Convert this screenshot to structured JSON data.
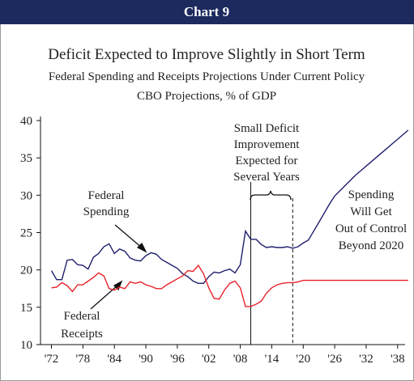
{
  "chart_data": {
    "type": "line",
    "header": "Chart 9",
    "title": "Deficit Expected to Improve Slightly in Short Term",
    "subtitle": [
      "Federal Spending and Receipts Projections Under Current Policy",
      "CBO Projections, % of GDP"
    ],
    "x": [
      1972,
      1973,
      1974,
      1975,
      1976,
      1977,
      1978,
      1979,
      1980,
      1981,
      1982,
      1983,
      1984,
      1985,
      1986,
      1987,
      1988,
      1989,
      1990,
      1991,
      1992,
      1993,
      1994,
      1995,
      1996,
      1997,
      1998,
      1999,
      2000,
      2001,
      2002,
      2003,
      2004,
      2005,
      2006,
      2007,
      2008,
      2009,
      2010,
      2011,
      2012,
      2013,
      2014,
      2015,
      2016,
      2017,
      2018,
      2019,
      2020,
      2021,
      2022,
      2023,
      2024,
      2025,
      2026,
      2027,
      2028,
      2029,
      2030,
      2031,
      2032,
      2033,
      2034,
      2035,
      2036,
      2037,
      2038,
      2039,
      2040
    ],
    "series": [
      {
        "name": "Federal Spending",
        "color": "#1f1f6e",
        "values": [
          19.9,
          18.7,
          18.7,
          21.3,
          21.4,
          20.7,
          20.6,
          20.1,
          21.7,
          22.2,
          23.1,
          23.5,
          22.2,
          22.8,
          22.5,
          21.6,
          21.3,
          21.2,
          21.9,
          22.3,
          22.1,
          21.4,
          21.0,
          20.6,
          20.2,
          19.5,
          19.1,
          18.5,
          18.2,
          18.2,
          19.1,
          19.7,
          19.6,
          19.9,
          20.1,
          19.6,
          20.7,
          25.2,
          24.1,
          24.1,
          23.4,
          23.0,
          23.1,
          23.0,
          23.0,
          23.1,
          22.9,
          23.1,
          23.6,
          24.0,
          25.2,
          26.4,
          27.6,
          28.8,
          29.9,
          30.6,
          31.3,
          32.0,
          32.7,
          33.3,
          33.9,
          34.5,
          35.1,
          35.7,
          36.3,
          36.9,
          37.5,
          38.1,
          38.7
        ]
      },
      {
        "name": "Federal Receipts",
        "color": "#e8232a",
        "values": [
          17.6,
          17.7,
          18.3,
          17.9,
          17.1,
          18.0,
          18.0,
          18.5,
          19.0,
          19.6,
          19.2,
          17.5,
          17.3,
          17.7,
          17.5,
          18.4,
          18.2,
          18.4,
          18.0,
          17.8,
          17.5,
          17.5,
          18.0,
          18.4,
          18.8,
          19.2,
          19.9,
          19.8,
          20.6,
          19.5,
          17.6,
          16.2,
          16.1,
          17.3,
          18.2,
          18.5,
          17.6,
          15.1,
          15.1,
          15.4,
          15.8,
          16.9,
          17.6,
          18.0,
          18.2,
          18.3,
          18.3,
          18.4,
          18.6,
          18.6,
          18.6,
          18.6,
          18.6,
          18.6,
          18.6,
          18.6,
          18.6,
          18.6,
          18.6,
          18.6,
          18.6,
          18.6,
          18.6,
          18.6,
          18.6,
          18.6,
          18.6,
          18.6,
          18.6
        ]
      }
    ],
    "xlim": [
      1971,
      2040.5
    ],
    "ylim": [
      10,
      40
    ],
    "yticks": [
      10,
      15,
      20,
      25,
      30,
      35,
      40
    ],
    "xticks": [
      {
        "value": 1972,
        "label": "'72"
      },
      {
        "value": 1978,
        "label": "'78"
      },
      {
        "value": 1984,
        "label": "'84"
      },
      {
        "value": 1990,
        "label": "'90"
      },
      {
        "value": 1996,
        "label": "'96"
      },
      {
        "value": 2002,
        "label": "'02"
      },
      {
        "value": 2008,
        "label": "'08"
      },
      {
        "value": 2014,
        "label": "'14"
      },
      {
        "value": 2020,
        "label": "'20"
      },
      {
        "value": 2026,
        "label": "'26"
      },
      {
        "value": 2032,
        "label": "'32"
      },
      {
        "value": 2038,
        "label": "'38"
      }
    ],
    "vlines": [
      {
        "x": 2010,
        "dashed": false
      },
      {
        "x": 2018,
        "dashed": true
      }
    ],
    "annotations": {
      "improvement": [
        "Small Deficit",
        "Improvement",
        "Expected for",
        "Several Years"
      ],
      "outlook": [
        "Spending",
        "Will Get",
        "Out of Control",
        "Beyond 2020"
      ],
      "spending": [
        "Federal",
        "Spending"
      ],
      "receipts": [
        "Federal",
        "Receipts"
      ]
    }
  }
}
